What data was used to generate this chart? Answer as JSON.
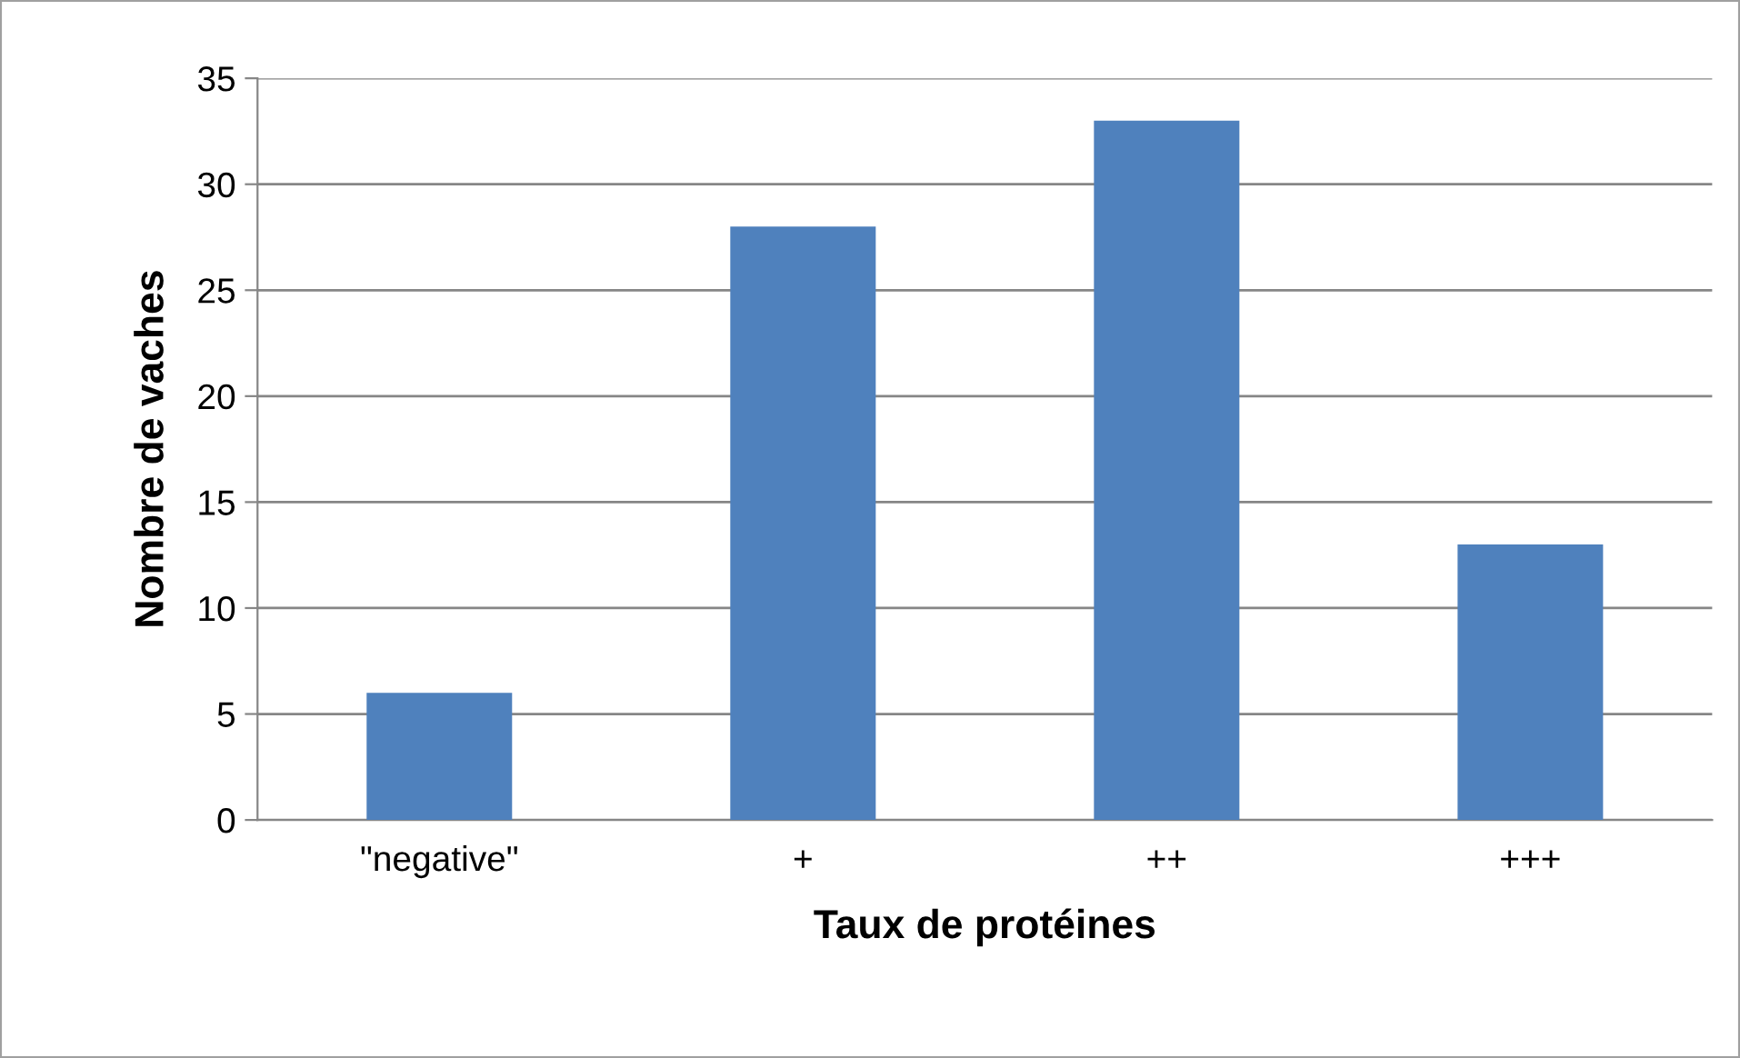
{
  "chart_data": {
    "type": "bar",
    "xlabel": "Taux de protéines",
    "ylabel": "Nombre de vaches",
    "categories": [
      "\"negative\"",
      "+",
      "++",
      "+++"
    ],
    "values": [
      6,
      28,
      33,
      13
    ],
    "color": "#4f81bd",
    "ylim": [
      0,
      35
    ],
    "yticks": [
      0,
      5,
      10,
      15,
      20,
      25,
      30,
      35
    ],
    "grid": "y",
    "legend": false
  }
}
